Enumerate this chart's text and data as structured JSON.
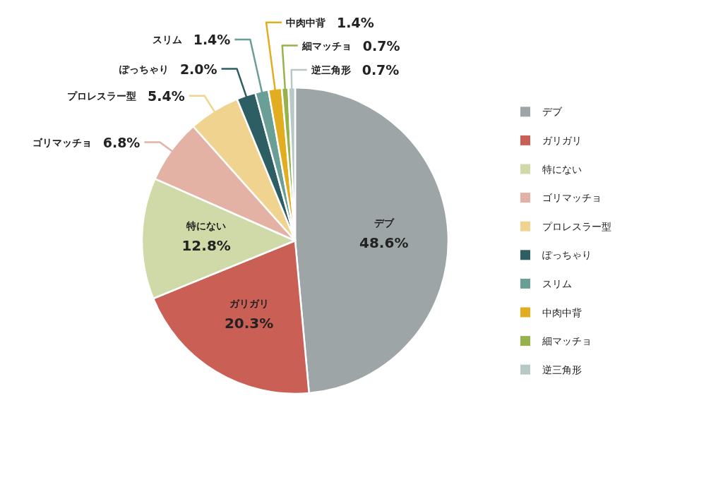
{
  "chart_data": {
    "type": "pie",
    "categories": [
      "デブ",
      "ガリガリ",
      "特にない",
      "ゴリマッチョ",
      "プロレスラー型",
      "ぽっちゃり",
      "スリム",
      "中肉中背",
      "細マッチョ",
      "逆三角形"
    ],
    "values": [
      48.6,
      20.3,
      12.8,
      6.8,
      5.4,
      2.0,
      1.4,
      1.4,
      0.7,
      0.7
    ],
    "value_labels": [
      "48.6%",
      "20.3%",
      "12.8%",
      "6.8%",
      "5.4%",
      "2.0%",
      "1.4%",
      "1.4%",
      "0.7%",
      "0.7%"
    ],
    "colors": [
      "#9ea5a7",
      "#c95f55",
      "#d0d9a8",
      "#e3b2a5",
      "#f0d38f",
      "#2d5e63",
      "#6a9f98",
      "#e3ad22",
      "#97b24a",
      "#b7c9c5"
    ],
    "legend": "right"
  }
}
